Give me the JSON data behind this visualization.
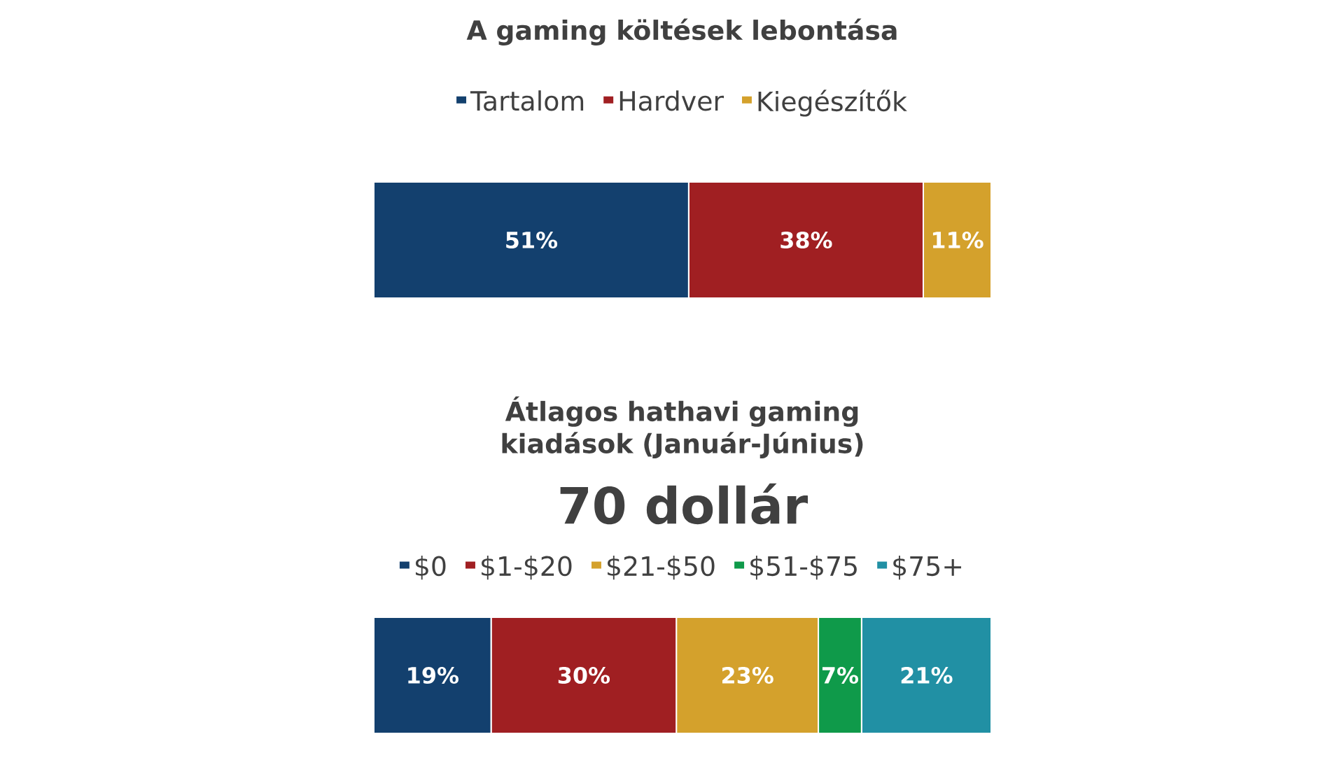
{
  "chart_data": [
    {
      "type": "bar",
      "orientation": "horizontal",
      "stacked": true,
      "title": "A gaming költések lebontása",
      "categories": [
        null
      ],
      "legend": "top",
      "tick_labels": false,
      "series": [
        {
          "name": "Tartalom",
          "color": "#13406e",
          "values": [
            51
          ],
          "value_labels": [
            "51%"
          ]
        },
        {
          "name": "Hardver",
          "color": "#a01f22",
          "values": [
            38
          ],
          "value_labels": [
            "38%"
          ]
        },
        {
          "name": "Kiegészítők",
          "color": "#d4a12c",
          "values": [
            11
          ],
          "value_labels": [
            "11%"
          ]
        }
      ]
    },
    {
      "type": "bar",
      "orientation": "horizontal",
      "stacked": true,
      "title": "Átlagos hathavi gaming kiadások (Január-Június)",
      "subtitle": "70 dollár",
      "categories": [
        null
      ],
      "legend": "top",
      "tick_labels": false,
      "series": [
        {
          "name": "$0",
          "color": "#13406e",
          "values": [
            19
          ],
          "value_labels": [
            "19%"
          ]
        },
        {
          "name": "$1-$20",
          "color": "#a01f22",
          "values": [
            30
          ],
          "value_labels": [
            "30%"
          ]
        },
        {
          "name": "$21-$50",
          "color": "#d4a12c",
          "values": [
            23
          ],
          "value_labels": [
            "23%"
          ]
        },
        {
          "name": "$51-$75",
          "color": "#0f9a4a",
          "values": [
            7
          ],
          "value_labels": [
            "7%"
          ]
        },
        {
          "name": "$75+",
          "color": "#2190a4",
          "values": [
            21
          ],
          "value_labels": [
            "21%"
          ]
        }
      ]
    }
  ]
}
